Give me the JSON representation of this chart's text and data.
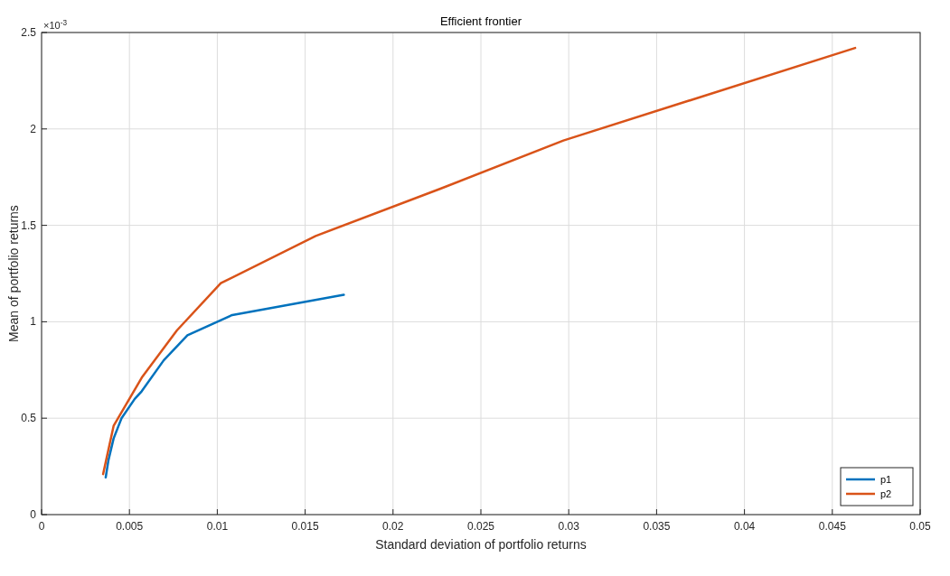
{
  "chart_data": {
    "type": "line",
    "title": "Efficient frontier",
    "xlabel": "Standard deviation of portfolio returns",
    "ylabel": "Mean of portfolio returns",
    "annotations": [
      "×10$^{-3}$"
    ],
    "xlim": [
      0,
      0.05
    ],
    "xticks": [
      0,
      0.005,
      0.01,
      0.015,
      0.02,
      0.025,
      0.03,
      0.035,
      0.04,
      0.045,
      0.05
    ],
    "ylim": [
      0,
      2.5
    ],
    "yticks": [
      0,
      0.5,
      1,
      1.5,
      2,
      2.5
    ],
    "grid": true,
    "legend": "bottom right",
    "marker": "none",
    "line_style": "solid",
    "series": [
      {
        "name": "p1",
        "color": "#0072bd",
        "x": [
          0.00365,
          0.0038,
          0.0041,
          0.00455,
          0.0053,
          0.0057,
          0.00695,
          0.0083,
          0.01085,
          0.0172
        ],
        "values": [
          0.193,
          0.28,
          0.395,
          0.5,
          0.6,
          0.64,
          0.8,
          0.93,
          1.035,
          1.14
        ]
      },
      {
        "name": "p2",
        "color": "#d95319",
        "x": [
          0.0035,
          0.0041,
          0.0057,
          0.0077,
          0.0102,
          0.0156,
          0.0227,
          0.0297,
          0.0463
        ],
        "values": [
          0.21,
          0.46,
          0.71,
          0.955,
          1.2,
          1.445,
          1.69,
          1.94,
          2.42
        ]
      }
    ]
  }
}
